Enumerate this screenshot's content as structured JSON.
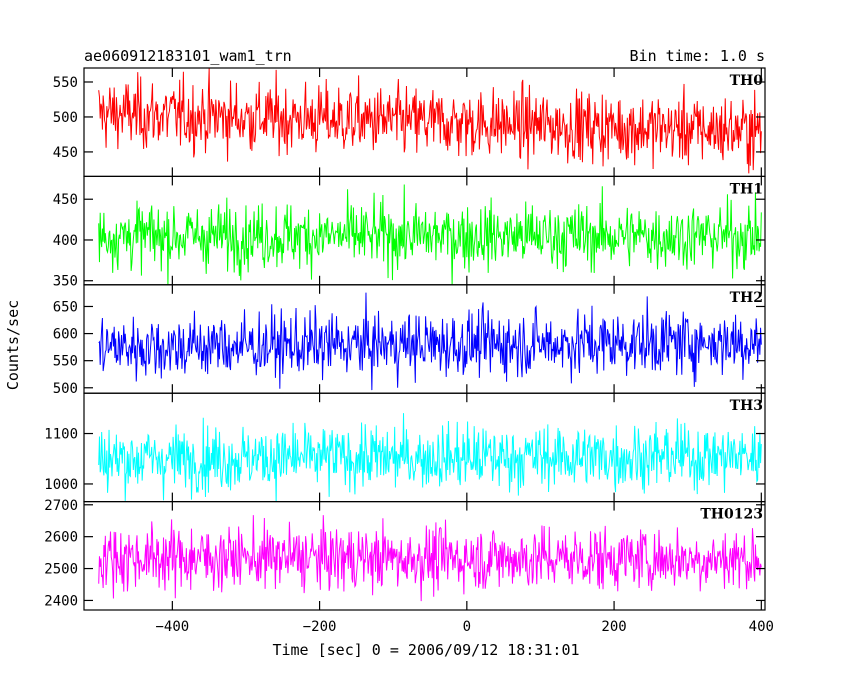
{
  "chart_data": {
    "type": "line",
    "title_left": "ae060912183101_wam1_trn",
    "title_right": "Bin time: 1.0 s",
    "xlabel": "Time [sec] 0 = 2006/09/12 18:31:01",
    "ylabel": "Counts/sec",
    "xlim": [
      -520,
      405
    ],
    "x_range_data": [
      -500,
      400
    ],
    "bin_time": 1.0,
    "x_ticks": [
      -400,
      -200,
      0,
      200,
      400
    ],
    "x_tick_labels": [
      "−400",
      "−200",
      "0",
      "200",
      "400"
    ],
    "grid": false,
    "series": [
      {
        "name": "TH0",
        "color": "#ff0000",
        "ylim": [
          415,
          570
        ],
        "y_ticks": [
          450,
          500,
          550
        ],
        "y_tick_labels": [
          "450",
          "500",
          "550"
        ],
        "mean_start": 505,
        "mean_end": 480,
        "spread": 25
      },
      {
        "name": "TH1",
        "color": "#00ff00",
        "ylim": [
          345,
          478
        ],
        "y_ticks": [
          350,
          400,
          450
        ],
        "y_tick_labels": [
          "350",
          "400",
          "450"
        ],
        "mean_start": 405,
        "mean_end": 405,
        "spread": 20
      },
      {
        "name": "TH2",
        "color": "#0000ff",
        "ylim": [
          490,
          690
        ],
        "y_ticks": [
          500,
          550,
          600,
          650
        ],
        "y_tick_labels": [
          "500",
          "550",
          "600",
          "650"
        ],
        "mean_start": 575,
        "mean_end": 585,
        "spread": 30
      },
      {
        "name": "TH3",
        "color": "#00ffff",
        "ylim": [
          965,
          1180
        ],
        "y_ticks": [
          1000,
          1100
        ],
        "y_tick_labels": [
          "1000",
          "1100"
        ],
        "mean_start": 1050,
        "mean_end": 1055,
        "spread": 32
      },
      {
        "name": "TH0123",
        "color": "#ff00ff",
        "ylim": [
          2370,
          2710
        ],
        "y_ticks": [
          2400,
          2500,
          2600,
          2700
        ],
        "y_tick_labels": [
          "2400",
          "2500",
          "2600",
          "2700"
        ],
        "mean_start": 2535,
        "mean_end": 2530,
        "spread": 50
      }
    ]
  }
}
